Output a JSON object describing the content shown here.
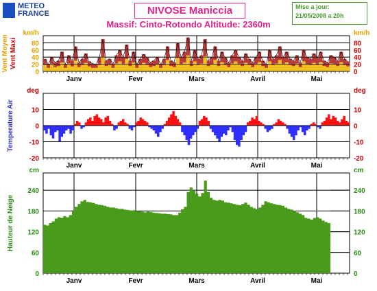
{
  "header": {
    "logo_line1": "METEO",
    "logo_line2": "FRANCE",
    "title": "NIVOSE Maniccia",
    "subtitle": "Massif: Cinto-Rotondo Altitude: 2360m",
    "update_line1": "Mise a jour:",
    "update_line2": "21/05/2008 a 20h"
  },
  "colors": {
    "wind_mean": "#f0c020",
    "wind_max": "#b83a3a",
    "temp_pos": "#ff1010",
    "temp_neg": "#2e2eff",
    "snow": "#4a9a1c",
    "title_pink": "#e0208a",
    "label_red": "#cc0000",
    "label_orange": "#e6a000",
    "label_blue": "#3030cc",
    "label_green": "#2a8a10"
  },
  "chart_data": [
    {
      "type": "area",
      "ylabel_mean": "Vent Moyen",
      "ylabel_max": "Vent Maxi",
      "unit": "km/h",
      "months": [
        "Janv",
        "Fevr",
        "Mars",
        "Avril",
        "Mai"
      ],
      "yticks": [
        0,
        20,
        40,
        60,
        80
      ],
      "ylim": [
        0,
        100
      ],
      "series": [
        {
          "name": "Vent Maxi",
          "values": [
            35,
            20,
            40,
            25,
            30,
            55,
            20,
            45,
            30,
            70,
            25,
            35,
            50,
            28,
            22,
            20,
            38,
            90,
            30,
            35,
            22,
            45,
            60,
            40,
            75,
            30,
            55,
            20,
            35,
            48,
            38,
            25,
            30,
            40,
            20,
            35,
            70,
            30,
            25,
            80,
            40,
            55,
            95,
            30,
            60,
            35,
            45,
            90,
            30,
            40,
            70,
            30,
            55,
            38,
            25,
            45,
            60,
            40,
            30,
            50,
            35,
            25,
            40,
            55,
            30,
            20,
            60,
            35,
            45,
            70,
            40,
            55,
            35,
            30,
            45,
            25,
            60,
            40,
            35,
            50,
            38,
            55,
            30,
            25,
            45,
            40,
            30,
            55,
            35,
            28
          ]
        },
        {
          "name": "Vent Moyen",
          "values": [
            18,
            10,
            20,
            12,
            15,
            25,
            10,
            22,
            14,
            30,
            12,
            18,
            24,
            14,
            10,
            10,
            18,
            40,
            15,
            18,
            10,
            22,
            28,
            20,
            35,
            15,
            25,
            10,
            18,
            24,
            18,
            12,
            15,
            20,
            10,
            18,
            32,
            15,
            12,
            38,
            20,
            25,
            45,
            15,
            28,
            18,
            22,
            42,
            15,
            20,
            32,
            15,
            26,
            18,
            12,
            22,
            28,
            20,
            15,
            24,
            18,
            12,
            20,
            26,
            15,
            10,
            28,
            18,
            22,
            32,
            20,
            26,
            18,
            15,
            22,
            12,
            28,
            20,
            18,
            24,
            18,
            26,
            15,
            12,
            22,
            20,
            15,
            26,
            18,
            14
          ]
        }
      ]
    },
    {
      "type": "bar",
      "ylabel": "Temperature Air",
      "unit": "deg",
      "months": [
        "Janv",
        "Fevr",
        "Mars",
        "Avril",
        "Mai"
      ],
      "yticks": [
        -20,
        -10,
        0,
        10
      ],
      "ylim": [
        -20,
        20
      ],
      "values": [
        -3,
        -5,
        -2,
        -6,
        -8,
        -4,
        -3,
        -10,
        -7,
        -5,
        -3,
        -2,
        -5,
        -3,
        1,
        3,
        2,
        -2,
        -1,
        2,
        4,
        5,
        3,
        6,
        7,
        5,
        4,
        2,
        5,
        6,
        3,
        1,
        -3,
        -2,
        2,
        3,
        4,
        2,
        1,
        -2,
        -3,
        -1,
        2,
        3,
        5,
        4,
        3,
        2,
        -1,
        -2,
        -3,
        -5,
        -7,
        -4,
        -2,
        1,
        3,
        5,
        7,
        9,
        6,
        4,
        2,
        -4,
        -6,
        -9,
        -12,
        -8,
        -6,
        -4,
        -2,
        3,
        4,
        6,
        5,
        3,
        -2,
        -4,
        -6,
        -8,
        -10,
        -7,
        -5,
        -6,
        -3,
        -1,
        -4,
        -9,
        -12,
        -13,
        -9,
        -6,
        -4,
        2,
        3,
        5,
        4,
        6,
        3,
        2,
        1,
        -2,
        -4,
        -3,
        -2,
        1,
        2,
        4,
        3,
        2,
        1,
        -2,
        -5,
        -7,
        -9,
        -6,
        -3,
        -1,
        -4,
        -6,
        -3,
        -2,
        1,
        2,
        1,
        -1,
        -2,
        2,
        3,
        5,
        7,
        4,
        6,
        5,
        3,
        2,
        4,
        6,
        3,
        2
      ]
    },
    {
      "type": "area",
      "ylabel": "Hauteur de Neige",
      "unit": "cm",
      "months": [
        "Janv",
        "Fevr",
        "Mars",
        "Avril",
        "Mai"
      ],
      "yticks": [
        0,
        60,
        120,
        180,
        240
      ],
      "ylim": [
        0,
        290
      ],
      "values": [
        140,
        138,
        145,
        150,
        158,
        162,
        160,
        165,
        162,
        168,
        182,
        192,
        200,
        208,
        212,
        206,
        205,
        203,
        200,
        198,
        197,
        195,
        192,
        190,
        190,
        188,
        186,
        186,
        184,
        183,
        181,
        182,
        180,
        179,
        178,
        176,
        178,
        177,
        175,
        174,
        173,
        172,
        172,
        171,
        170,
        168,
        168,
        175,
        185,
        192,
        235,
        248,
        238,
        230,
        222,
        232,
        268,
        235,
        218,
        212,
        210,
        212,
        210,
        205,
        204,
        202,
        200,
        198,
        197,
        200,
        204,
        198,
        192,
        188,
        185,
        190,
        198,
        208,
        205,
        202,
        200,
        198,
        197,
        195,
        190,
        186,
        184,
        180,
        176,
        172,
        168,
        160,
        158,
        155,
        160,
        162,
        158,
        152,
        148,
        145
      ]
    }
  ]
}
